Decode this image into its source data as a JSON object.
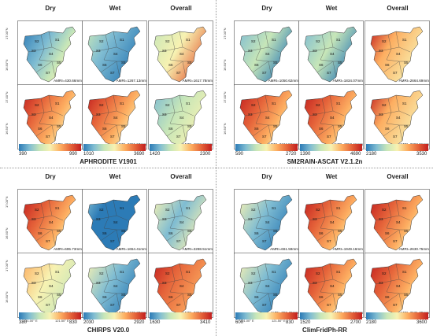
{
  "columns": [
    "Dry",
    "Wet",
    "Overall"
  ],
  "colorbars": {
    "blue_red": [
      "#2c7bb6",
      "#7fbcd2",
      "#c7e6b8",
      "#f7f2b2",
      "#fdae61",
      "#e5643a",
      "#c21e1e"
    ]
  },
  "datasets": [
    {
      "name": "APHRODITE V1901",
      "ticks": {
        "lat_top": [
          "17.00°N",
          "16.50°N"
        ],
        "lat_bottom": [
          "17.00°N",
          "16.50°N"
        ],
        "lon": []
      },
      "scales": [
        [
          "390",
          "990"
        ],
        [
          "1010",
          "3690"
        ],
        [
          "1420",
          "2300"
        ]
      ],
      "amri": [
        [
          "AMRI=430.66mm",
          "AMRI=1267.13mm",
          "AMRI=1617.78mm"
        ],
        [
          "AMRI=862.53mm",
          "AMRI=2766.63mm",
          "AMRI=1818.34mm"
        ]
      ],
      "regions": [
        "S1",
        "S2",
        "S3",
        "S4",
        "S5",
        "S6",
        "S7"
      ]
    },
    {
      "name": "SM2RAIN-ASCAT V2.1.2n",
      "ticks": {
        "lat_top": [
          "17.00°N",
          "16.50°N"
        ],
        "lat_bottom": [
          "17.00°N",
          "16.50°N"
        ],
        "lon": []
      },
      "scales": [
        [
          "590",
          "2720"
        ],
        [
          "1390",
          "4690"
        ],
        [
          "2180",
          "3530"
        ]
      ],
      "amri": [
        [
          "AMRI=1050.62mm",
          "AMRI=1834.07mm",
          "AMRI=2664.69mm"
        ],
        [
          "AMRI=2104.52mm",
          "AMRI=3656.11mm",
          "AMRI=2882.91mm"
        ]
      ],
      "regions": [
        "S1",
        "S2",
        "S3",
        "S4",
        "S5",
        "S6",
        "S7"
      ]
    },
    {
      "name": "CHIRPS V20.0",
      "ticks": {
        "lat_top": [
          "17.00°N",
          "16.50°N"
        ],
        "lat_bottom": [
          "17.00°N",
          "16.50°N"
        ],
        "lon": [
          "121.00° E",
          "121.50° E"
        ]
      },
      "scales": [
        [
          "380",
          "830"
        ],
        [
          "2030",
          "2920"
        ],
        [
          "1630",
          "3410"
        ]
      ],
      "amri": [
        [
          "AMRI=695.73mm",
          "AMRI=1654.41mm",
          "AMRI=2288.51mm"
        ],
        [
          "AMRI=394.06mm",
          "AMRI=2198.28mm",
          "AMRI=2792.34mm"
        ]
      ],
      "regions": [
        "S1",
        "S2",
        "S3",
        "S4",
        "S5",
        "S6",
        "S7"
      ]
    },
    {
      "name": "ClimFridPh-RR",
      "ticks": {
        "lat_top": [],
        "lat_bottom": [],
        "lon": [
          "121.00° E",
          "121.50° E"
        ]
      },
      "scales": [
        [
          "600",
          "830"
        ],
        [
          "1520",
          "2700"
        ],
        [
          "2180",
          "3600"
        ]
      ],
      "amri": [
        [
          "AMRI=661.59mm",
          "AMRI=1949.16mm",
          "AMRI=2630.75mm"
        ],
        [
          "AMRI=782.45mm",
          "AMRI=1925.52mm",
          "AMRI=2531.39mm"
        ]
      ],
      "regions": [
        "S1",
        "S2",
        "S3",
        "S4",
        "S5",
        "S6",
        "S7"
      ]
    }
  ],
  "patterns": {
    "APHRODITE V1901": [
      [
        "sw-low",
        "blue-gradient",
        "warm-top-right"
      ],
      [
        "warm-west",
        "warm-west",
        "green-mix"
      ]
    ],
    "SM2RAIN-ASCAT V2.1.2n": [
      [
        "blue-mix",
        "blue-mix",
        "red-north"
      ],
      [
        "red-west",
        "red-west",
        "red-north"
      ]
    ],
    "CHIRPS V20.0": [
      [
        "red-west",
        "blue-all",
        "yellow-blue-center"
      ],
      [
        "red-west-soft",
        "blue-east",
        "red-strong"
      ]
    ],
    "ClimFridPh-RR": [
      [
        "blue-east",
        "red-west",
        "red-west"
      ],
      [
        "blue-east",
        "red-west",
        "red-west"
      ]
    ]
  }
}
